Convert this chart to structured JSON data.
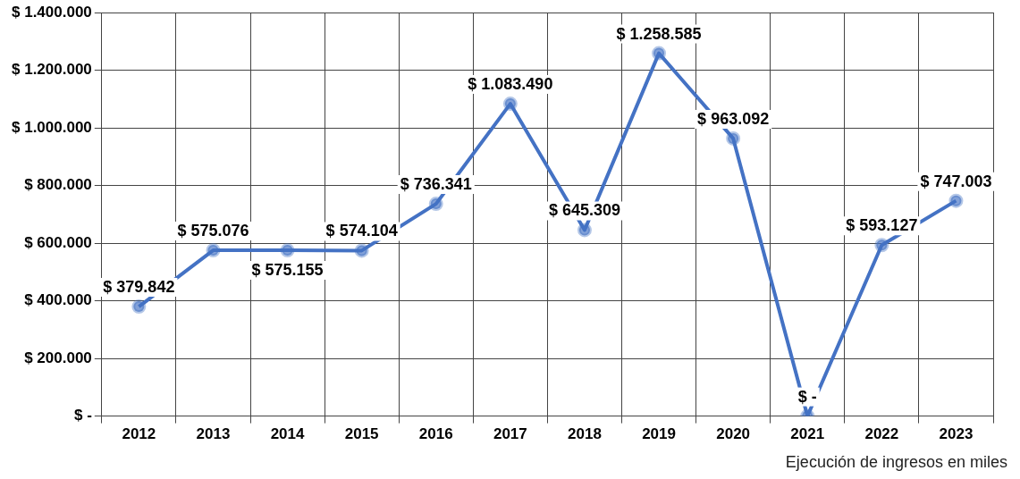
{
  "chart_data": {
    "type": "line",
    "categories": [
      "2012",
      "2013",
      "2014",
      "2015",
      "2016",
      "2017",
      "2018",
      "2019",
      "2020",
      "2021",
      "2022",
      "2023"
    ],
    "series": [
      {
        "color": "#4472c4",
        "values": [
          379842,
          575076,
          575155,
          574104,
          736341,
          1083490,
          645309,
          1258585,
          963092,
          0,
          593127,
          747003
        ],
        "value_labels": [
          "$ 379.842",
          "$ 575.076",
          "$ 575.155",
          "$ 574.104",
          "$ 736.341",
          "$ 1.083.490",
          "$ 645.309",
          "$ 1.258.585",
          "$ 963.092",
          "$ -",
          "$ 593.127",
          "$ 747.003"
        ]
      }
    ],
    "ylim": [
      0,
      1400000
    ],
    "yticks": [
      {
        "value": 0,
        "label": "$ -"
      },
      {
        "value": 200000,
        "label": "$ 200.000"
      },
      {
        "value": 400000,
        "label": "$ 400.000"
      },
      {
        "value": 600000,
        "label": "$ 600.000"
      },
      {
        "value": 800000,
        "label": "$ 800.000"
      },
      {
        "value": 1000000,
        "label": "$ 1.000.000"
      },
      {
        "value": 1200000,
        "label": "$ 1.200.000"
      },
      {
        "value": 1400000,
        "label": "$ 1.400.000"
      }
    ],
    "grid": true,
    "legend": false,
    "marker": "circle",
    "line_style": "solid",
    "annotations": [
      "Ejecución de ingresos en miles"
    ]
  }
}
